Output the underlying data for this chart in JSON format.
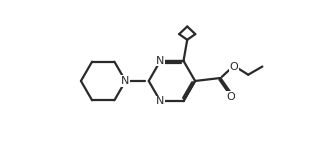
{
  "line_color": "#2a2a2a",
  "bg_color": "#ffffff",
  "lw": 1.6,
  "figsize": [
    3.26,
    1.56
  ],
  "dpi": 100,
  "xlim": [
    0,
    10
  ],
  "ylim": [
    0,
    5.2
  ]
}
